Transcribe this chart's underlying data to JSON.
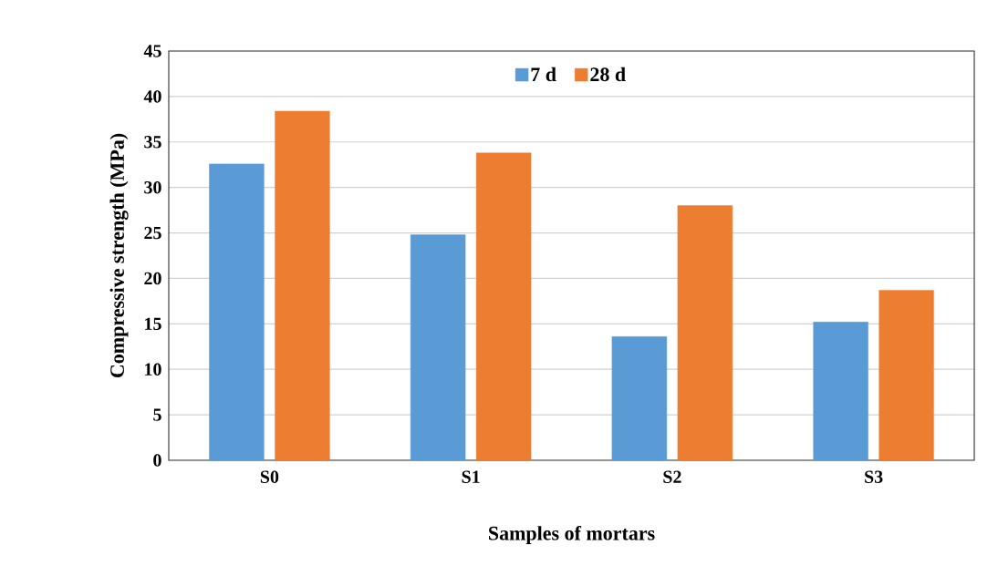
{
  "chart_data": {
    "type": "bar",
    "xlabel": "Samples of mortars",
    "ylabel": "Compressive strength (MPa)",
    "categories": [
      "S0",
      "S1",
      "S2",
      "S3"
    ],
    "series": [
      {
        "name": "7 d",
        "color": "#5b9bd5",
        "values": [
          32.6,
          24.8,
          13.6,
          15.2
        ]
      },
      {
        "name": "28 d",
        "color": "#ed7d31",
        "values": [
          38.4,
          33.8,
          28.0,
          18.7
        ]
      }
    ],
    "ylim": [
      0,
      45
    ],
    "yticks": [
      0,
      5,
      10,
      15,
      20,
      25,
      30,
      35,
      40,
      45
    ],
    "grid": "y",
    "legend": "top"
  }
}
